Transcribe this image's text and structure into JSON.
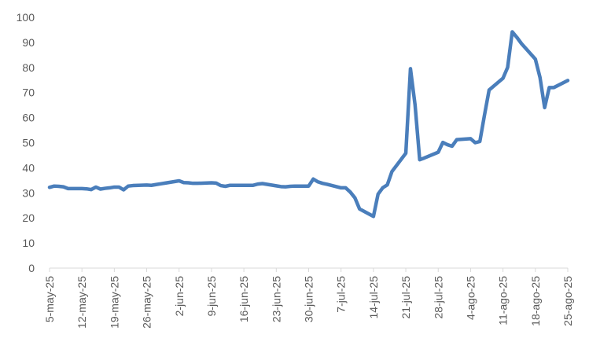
{
  "chart_data": {
    "type": "line",
    "title": "",
    "xlabel": "",
    "ylabel": "",
    "ylim": [
      0,
      100
    ],
    "yticks": [
      0,
      10,
      20,
      30,
      40,
      50,
      60,
      70,
      80,
      90,
      100
    ],
    "grid": false,
    "legend": "none",
    "line_color": "#4a7ebb",
    "x_tick_labels": [
      "5-may-25",
      "12-may-25",
      "19-may-25",
      "26-may-25",
      "2-jun-25",
      "9-jun-25",
      "16-jun-25",
      "23-jun-25",
      "30-jun-25",
      "7-jul-25",
      "14-jul-25",
      "21-jul-25",
      "28-jul-25",
      "4-ago-25",
      "11-ago-25",
      "18-ago-25",
      "25-ago-25"
    ],
    "x_range": [
      "2025-05-05",
      "2025-08-25"
    ],
    "series": [
      {
        "x": [
          "2025-05-05",
          "2025-05-06",
          "2025-05-07",
          "2025-05-08",
          "2025-05-09",
          "2025-05-12",
          "2025-05-13",
          "2025-05-14",
          "2025-05-15",
          "2025-05-16",
          "2025-05-17",
          "2025-05-18",
          "2025-05-19",
          "2025-05-20",
          "2025-05-21",
          "2025-05-22",
          "2025-05-23",
          "2025-05-26",
          "2025-05-27",
          "2025-05-28",
          "2025-05-29",
          "2025-05-30",
          "2025-06-02",
          "2025-06-03",
          "2025-06-04",
          "2025-06-05",
          "2025-06-06",
          "2025-06-09",
          "2025-06-10",
          "2025-06-11",
          "2025-06-12",
          "2025-06-13",
          "2025-06-16",
          "2025-06-17",
          "2025-06-18",
          "2025-06-19",
          "2025-06-20",
          "2025-06-23",
          "2025-06-24",
          "2025-06-25",
          "2025-06-26",
          "2025-06-27",
          "2025-06-30",
          "2025-07-01",
          "2025-07-02",
          "2025-07-03",
          "2025-07-04",
          "2025-07-07",
          "2025-07-08",
          "2025-07-09",
          "2025-07-10",
          "2025-07-11",
          "2025-07-14",
          "2025-07-15",
          "2025-07-16",
          "2025-07-17",
          "2025-07-18",
          "2025-07-21",
          "2025-07-22",
          "2025-07-23",
          "2025-07-24",
          "2025-07-25",
          "2025-07-28",
          "2025-07-29",
          "2025-07-30",
          "2025-07-31",
          "2025-08-01",
          "2025-08-04",
          "2025-08-05",
          "2025-08-06",
          "2025-08-07",
          "2025-08-08",
          "2025-08-11",
          "2025-08-12",
          "2025-08-13",
          "2025-08-14",
          "2025-08-15",
          "2025-08-18",
          "2025-08-19",
          "2025-08-20",
          "2025-08-21",
          "2025-08-22",
          "2025-08-25"
        ],
        "y": [
          32.2,
          32.7,
          32.6,
          32.4,
          31.7,
          31.7,
          31.6,
          31.3,
          32.3,
          31.5,
          31.8,
          32.0,
          32.3,
          32.3,
          31.2,
          32.7,
          32.9,
          33.1,
          33.0,
          33.3,
          33.6,
          33.9,
          34.8,
          34.1,
          34.0,
          33.8,
          33.8,
          34.0,
          33.9,
          32.9,
          32.6,
          33.0,
          33.0,
          33.0,
          33.0,
          33.5,
          33.7,
          32.8,
          32.5,
          32.4,
          32.6,
          32.7,
          32.7,
          35.5,
          34.4,
          33.8,
          33.4,
          32.0,
          32.0,
          30.3,
          28.0,
          23.6,
          20.6,
          29.5,
          32.0,
          33.2,
          38.5,
          45.8,
          79.5,
          65.0,
          43.2,
          43.9,
          46.2,
          50.1,
          49.2,
          48.6,
          51.2,
          51.6,
          50.0,
          50.5,
          61.0,
          71.0,
          75.7,
          80.0,
          94.2,
          92.0,
          89.5,
          83.3,
          76.0,
          64.0,
          72.0,
          72.0,
          74.8
        ]
      }
    ]
  }
}
